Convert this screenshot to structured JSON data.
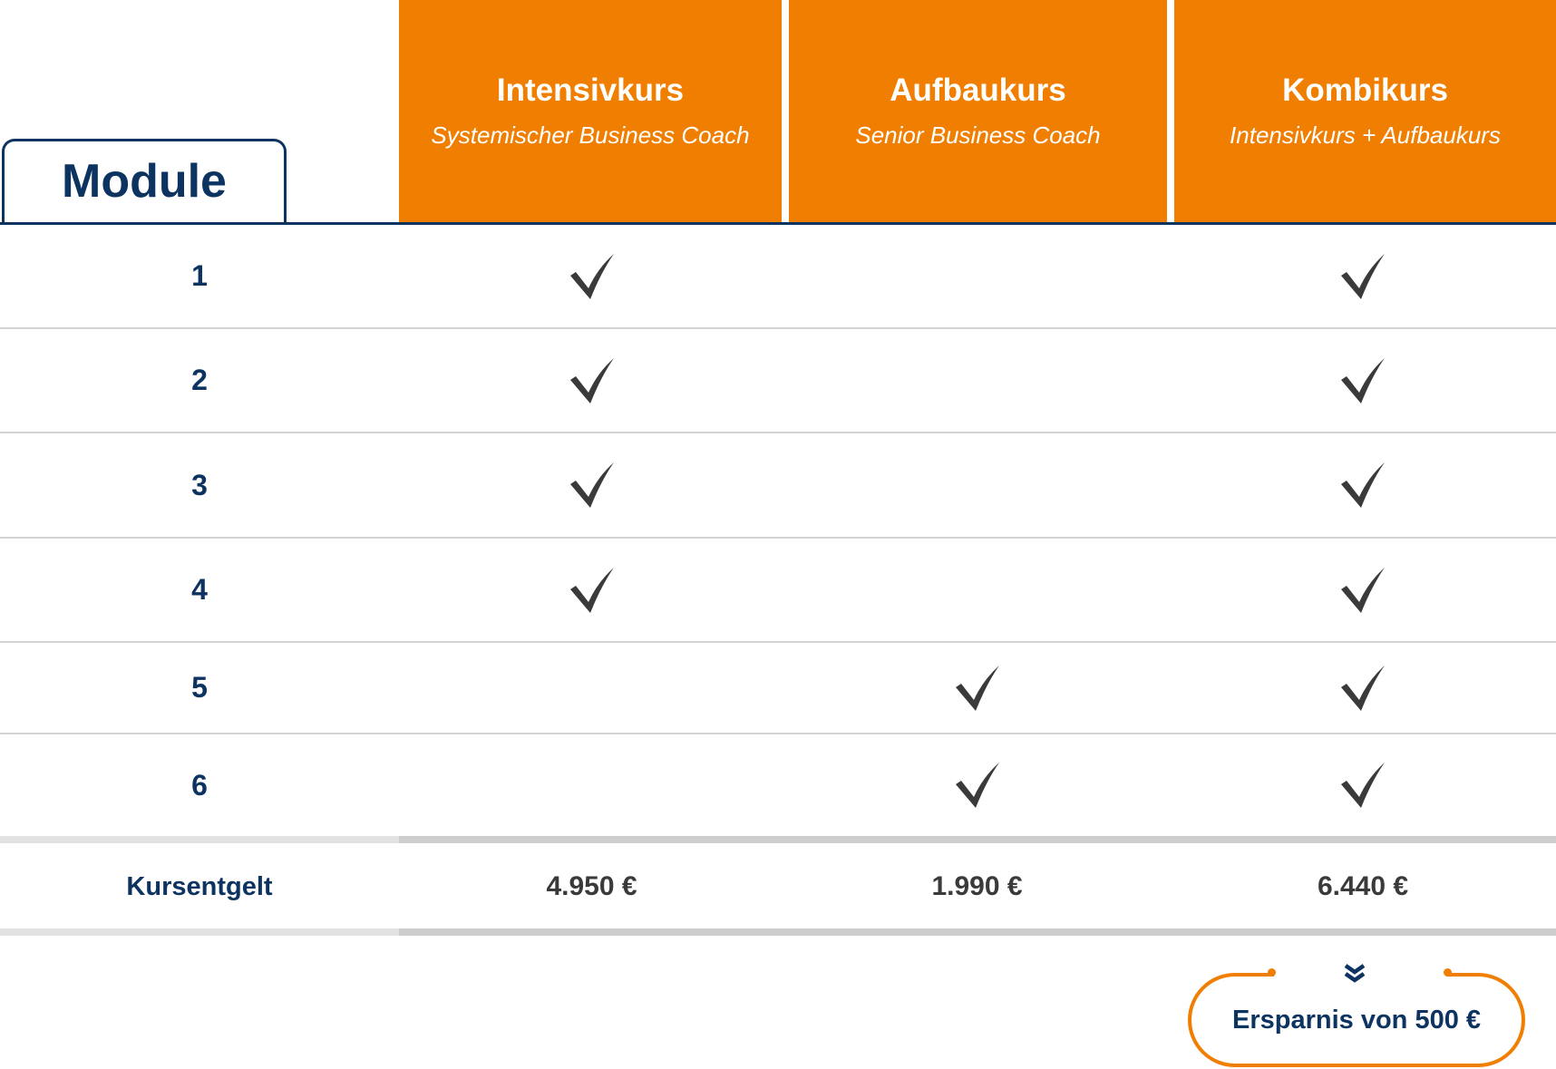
{
  "header": {
    "module_label": "Module",
    "courses": [
      {
        "title": "Intensivkurs",
        "subtitle": "Systemischer Business Coach"
      },
      {
        "title": "Aufbaukurs",
        "subtitle": "Senior Business Coach"
      },
      {
        "title": "Kombikurs",
        "subtitle": "Intensivkurs + Aufbaukurs"
      }
    ]
  },
  "rows": [
    {
      "module": "1",
      "checks": [
        true,
        false,
        true
      ]
    },
    {
      "module": "2",
      "checks": [
        true,
        false,
        true
      ]
    },
    {
      "module": "3",
      "checks": [
        true,
        false,
        true
      ]
    },
    {
      "module": "4",
      "checks": [
        true,
        false,
        true
      ]
    },
    {
      "module": "5",
      "checks": [
        false,
        true,
        true
      ]
    },
    {
      "module": "6",
      "checks": [
        false,
        true,
        true
      ]
    }
  ],
  "price_row": {
    "label": "Kursentgelt",
    "prices": [
      "4.950 €",
      "1.990 €",
      "6.440 €"
    ]
  },
  "savings": {
    "label": "Ersparnis von 500 €",
    "icon": "double-chevron-down-icon"
  },
  "colors": {
    "accent": "#f07e00",
    "navy": "#0d3360",
    "check": "#3a3a3a"
  }
}
